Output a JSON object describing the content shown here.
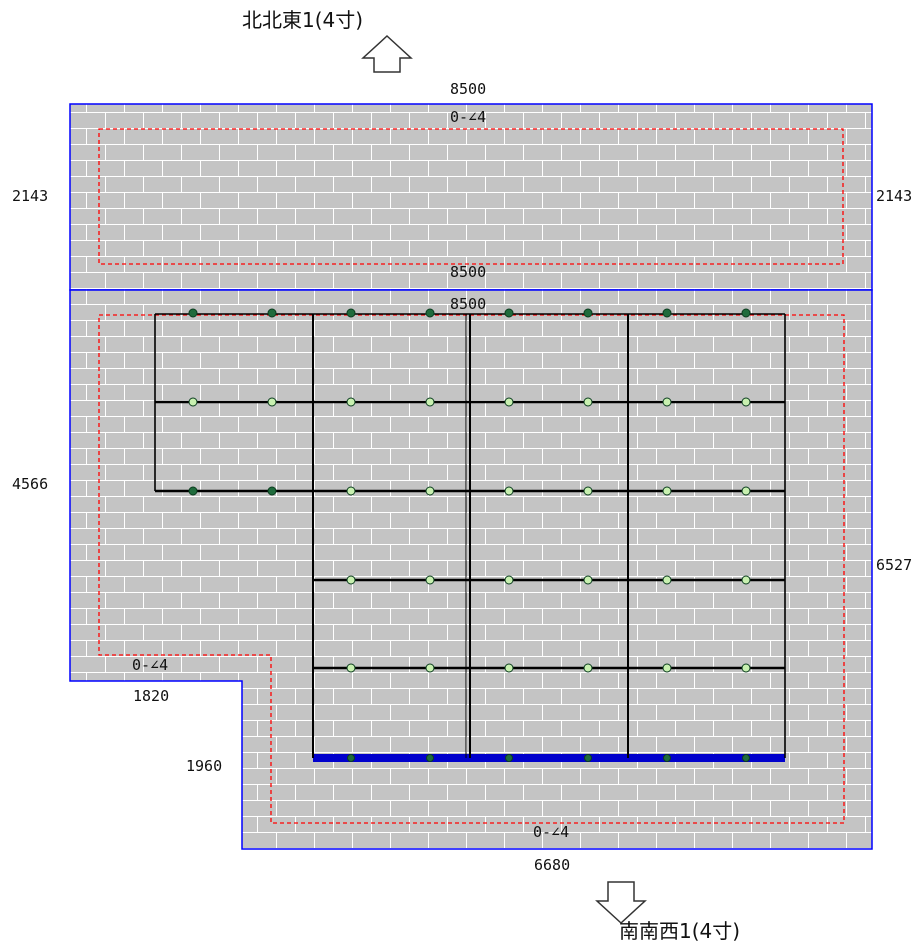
{
  "directions": {
    "north_label": "北北東1(4寸)",
    "south_label": "南南西1(4寸)",
    "north_arrow_icon": "arrow-up-outline-icon",
    "south_arrow_icon": "arrow-down-outline-icon"
  },
  "upper_roof": {
    "top_width": "8500",
    "slope_label": "0-∠4",
    "left_height": "2143",
    "right_height": "2143",
    "bottom_width": "8500"
  },
  "lower_roof": {
    "top_width": "8500",
    "left_height": "4566",
    "right_height": "6527",
    "notch_width": "1820",
    "notch_height": "1960",
    "slope_label_left": "0-∠4",
    "slope_label_bottom": "0-∠4",
    "bottom_width": "6680"
  },
  "colors": {
    "roof_fill": "#c4c4c4",
    "tile_lines": "#ffffff",
    "roof_outline": "#0000ff",
    "setback_line": "#ff0000",
    "panel_frame": "#000000",
    "eave_rail": "#0000cc",
    "fixing_point_dark": "#1f6b3c",
    "fixing_point_light": "#c8f0b0"
  }
}
